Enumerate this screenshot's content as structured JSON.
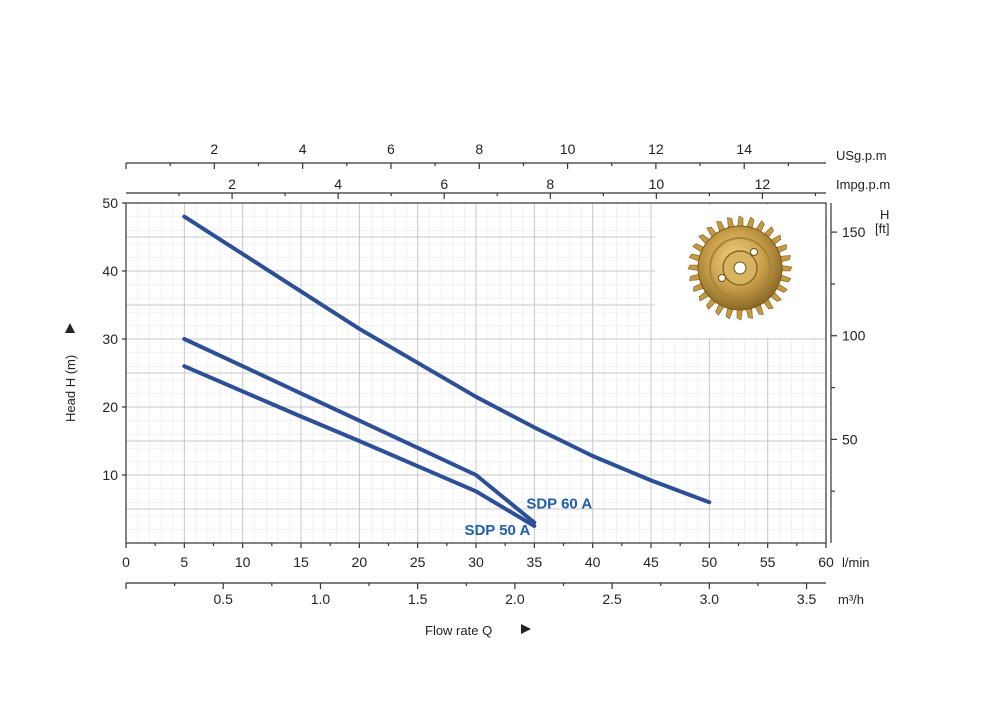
{
  "chart_data": {
    "type": "line",
    "xlabel": "Flow rate Q",
    "ylabel": "Head H (m)",
    "x_unit": "l/min",
    "x_range": [
      0,
      60
    ],
    "x_ticks": [
      "0",
      "5",
      "10",
      "15",
      "20",
      "25",
      "30",
      "35",
      "40",
      "45",
      "50",
      "55",
      "60"
    ],
    "y_range": [
      0,
      50
    ],
    "y_ticks": [
      "10",
      "20",
      "30",
      "40",
      "50"
    ],
    "grid": true,
    "secondary_axes": {
      "m3h": {
        "unit": "m³/h",
        "ticks": [
          "0.5",
          "1.0",
          "1.5",
          "2.0",
          "2.5",
          "3.0",
          "3.5"
        ],
        "values": [
          0.5,
          1.0,
          1.5,
          2.0,
          2.5,
          3.0,
          3.5
        ]
      },
      "usgpm": {
        "unit": "USg.p.m",
        "ticks": [
          "2",
          "4",
          "6",
          "8",
          "10",
          "12",
          "14"
        ],
        "values": [
          2,
          4,
          6,
          8,
          10,
          12,
          14
        ]
      },
      "impgpm": {
        "unit": "Impg.p.m",
        "ticks": [
          "2",
          "4",
          "6",
          "8",
          "10",
          "12"
        ],
        "values": [
          2,
          4,
          6,
          8,
          10,
          12
        ]
      },
      "feet": {
        "unit_line1": "H",
        "unit_line2": "[ft]",
        "ticks": [
          "50",
          "100",
          "150"
        ],
        "values": [
          50,
          100,
          150
        ]
      }
    },
    "series": [
      {
        "x": [
          5,
          10,
          15,
          20,
          25,
          30,
          35,
          40,
          45,
          50
        ],
        "y": [
          48,
          42.5,
          37,
          31.5,
          26.5,
          21.5,
          17,
          12.8,
          9.2,
          6
        ]
      },
      {
        "name": "SDP 60 A",
        "x": [
          5,
          10,
          15,
          20,
          25,
          30,
          35
        ],
        "y": [
          30,
          26,
          22,
          18,
          14,
          10,
          3
        ]
      },
      {
        "name": "SDP 50 A",
        "x": [
          5,
          10,
          15,
          20,
          25,
          30,
          35
        ],
        "y": [
          26,
          22.3,
          18.6,
          15,
          11.3,
          7.6,
          2.5
        ]
      }
    ],
    "line_color": "#2d4f95",
    "label_color": "#1f5fa8"
  },
  "impeller": {
    "icon": "impeller-icon"
  }
}
